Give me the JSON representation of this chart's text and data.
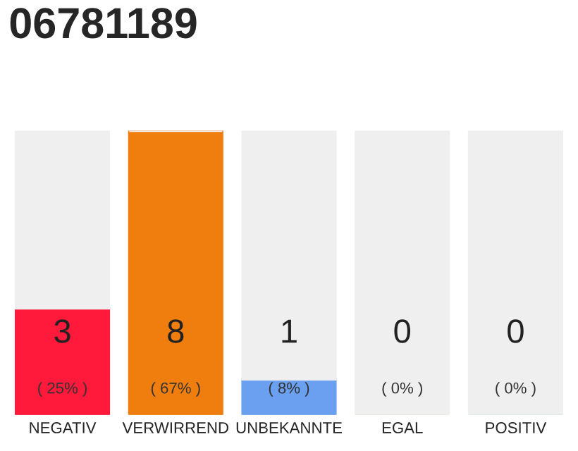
{
  "chart_data": {
    "type": "bar",
    "title": "06781189",
    "categories": [
      "NEGATIV",
      "VERWIRREND",
      "UNBEKANNTE",
      "EGAL",
      "POSITIV"
    ],
    "series": [
      {
        "colors": [
          "#ff1a3c",
          "#f07e0e",
          "#6aa0ef",
          "#8bc34a",
          "#2ea84c"
        ],
        "values": [
          3,
          8,
          1,
          0,
          0
        ],
        "value_labels": [
          "3\n( 25% )",
          "8\n( 67% )",
          "1\n( 8% )",
          "0\n( 0% )",
          "0\n( 0% )"
        ]
      },
      {
        "color": "#efefef",
        "values": [
          5,
          0,
          7,
          8,
          8
        ]
      }
    ],
    "stacked": true,
    "ylim": [
      0,
      8
    ],
    "tick_labels": "x",
    "grid": false,
    "legend": false
  }
}
